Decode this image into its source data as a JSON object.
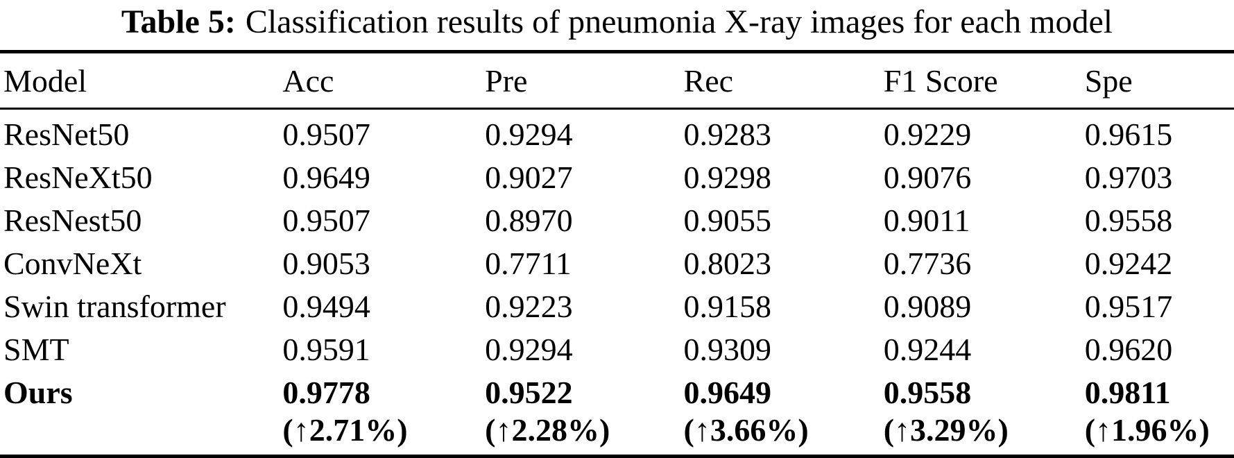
{
  "caption": {
    "label": "Table 5:",
    "text": "Classification results of pneumonia X-ray images for each model"
  },
  "table": {
    "columns": [
      "Model",
      "Acc",
      "Pre",
      "Rec",
      "F1 Score",
      "Spe"
    ],
    "rows": [
      {
        "model": "ResNet50",
        "bold": false,
        "values": [
          "0.9507",
          "0.9294",
          "0.9283",
          "0.9229",
          "0.9615"
        ]
      },
      {
        "model": "ResNeXt50",
        "bold": false,
        "values": [
          "0.9649",
          "0.9027",
          "0.9298",
          "0.9076",
          "0.9703"
        ]
      },
      {
        "model": "ResNest50",
        "bold": false,
        "values": [
          "0.9507",
          "0.8970",
          "0.9055",
          "0.9011",
          "0.9558"
        ]
      },
      {
        "model": "ConvNeXt",
        "bold": false,
        "values": [
          "0.9053",
          "0.7711",
          "0.8023",
          "0.7736",
          "0.9242"
        ]
      },
      {
        "model": "Swin transformer",
        "bold": false,
        "values": [
          "0.9494",
          "0.9223",
          "0.9158",
          "0.9089",
          "0.9517"
        ]
      },
      {
        "model": "SMT",
        "bold": false,
        "values": [
          "0.9591",
          "0.9294",
          "0.9309",
          "0.9244",
          "0.9620"
        ]
      },
      {
        "model": "Ours",
        "bold": true,
        "values": [
          "0.9778",
          "0.9522",
          "0.9649",
          "0.9558",
          "0.9811"
        ]
      },
      {
        "model": "",
        "bold": true,
        "improvement": true,
        "values": [
          "(↑2.71%)",
          "(↑2.28%)",
          "(↑3.66%)",
          "(↑3.29%)",
          "(↑1.96%)"
        ]
      }
    ],
    "colors": {
      "text": "#000000",
      "background": "#ffffff",
      "rule": "#000000"
    }
  }
}
